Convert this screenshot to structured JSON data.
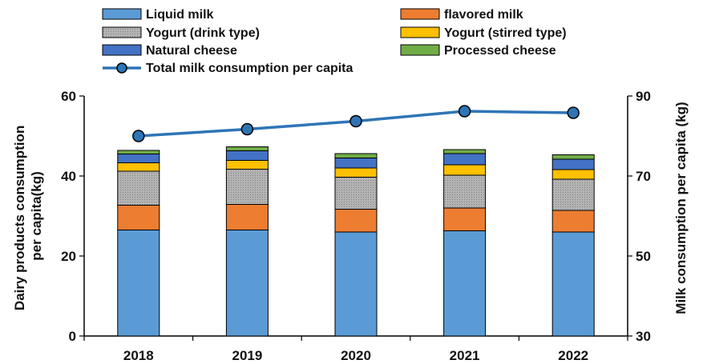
{
  "chart_data": {
    "type": "bar",
    "stacked": true,
    "categories": [
      "2018",
      "2019",
      "2020",
      "2021",
      "2022"
    ],
    "series": [
      {
        "name": "Liquid milk",
        "color": "#5b9bd5",
        "values": [
          26.5,
          26.5,
          26.0,
          26.3,
          26.0
        ]
      },
      {
        "name": "flavored milk",
        "color": "#ed7d31",
        "values": [
          6.2,
          6.4,
          5.7,
          5.7,
          5.4
        ]
      },
      {
        "name": "Yogurt (drink type)",
        "color": "#a6a6a6",
        "pattern": "dotted",
        "values": [
          8.5,
          8.8,
          8.0,
          8.2,
          7.8
        ]
      },
      {
        "name": "Yogurt (stirred type)",
        "color": "#ffc000",
        "values": [
          2.1,
          2.2,
          2.3,
          2.6,
          2.4
        ]
      },
      {
        "name": "Natural cheese",
        "color": "#4472c4",
        "values": [
          2.2,
          2.4,
          2.5,
          2.8,
          2.6
        ]
      },
      {
        "name": "Processed cheese",
        "color": "#70ad47",
        "values": [
          0.9,
          1.0,
          1.1,
          1.0,
          1.1
        ]
      }
    ],
    "line_series": {
      "name": "Total milk consumption per capita",
      "color": "#2e75b6",
      "axis": "right",
      "values": [
        80.0,
        81.7,
        83.7,
        86.2,
        85.8
      ]
    },
    "left_axis": {
      "label": "Dairy products consumption per capita(kg)",
      "label_lines": [
        "Dairy products consumption",
        "per capita(kg)"
      ],
      "ylim": [
        0,
        60
      ],
      "ticks": [
        "0",
        "20",
        "40",
        "60"
      ]
    },
    "right_axis": {
      "label": "Milk consumption per capita (kg)",
      "ylim": [
        30,
        90
      ],
      "ticks": [
        "30",
        "50",
        "70",
        "90"
      ]
    },
    "xlabel": "",
    "grid": false,
    "legend": "top"
  }
}
